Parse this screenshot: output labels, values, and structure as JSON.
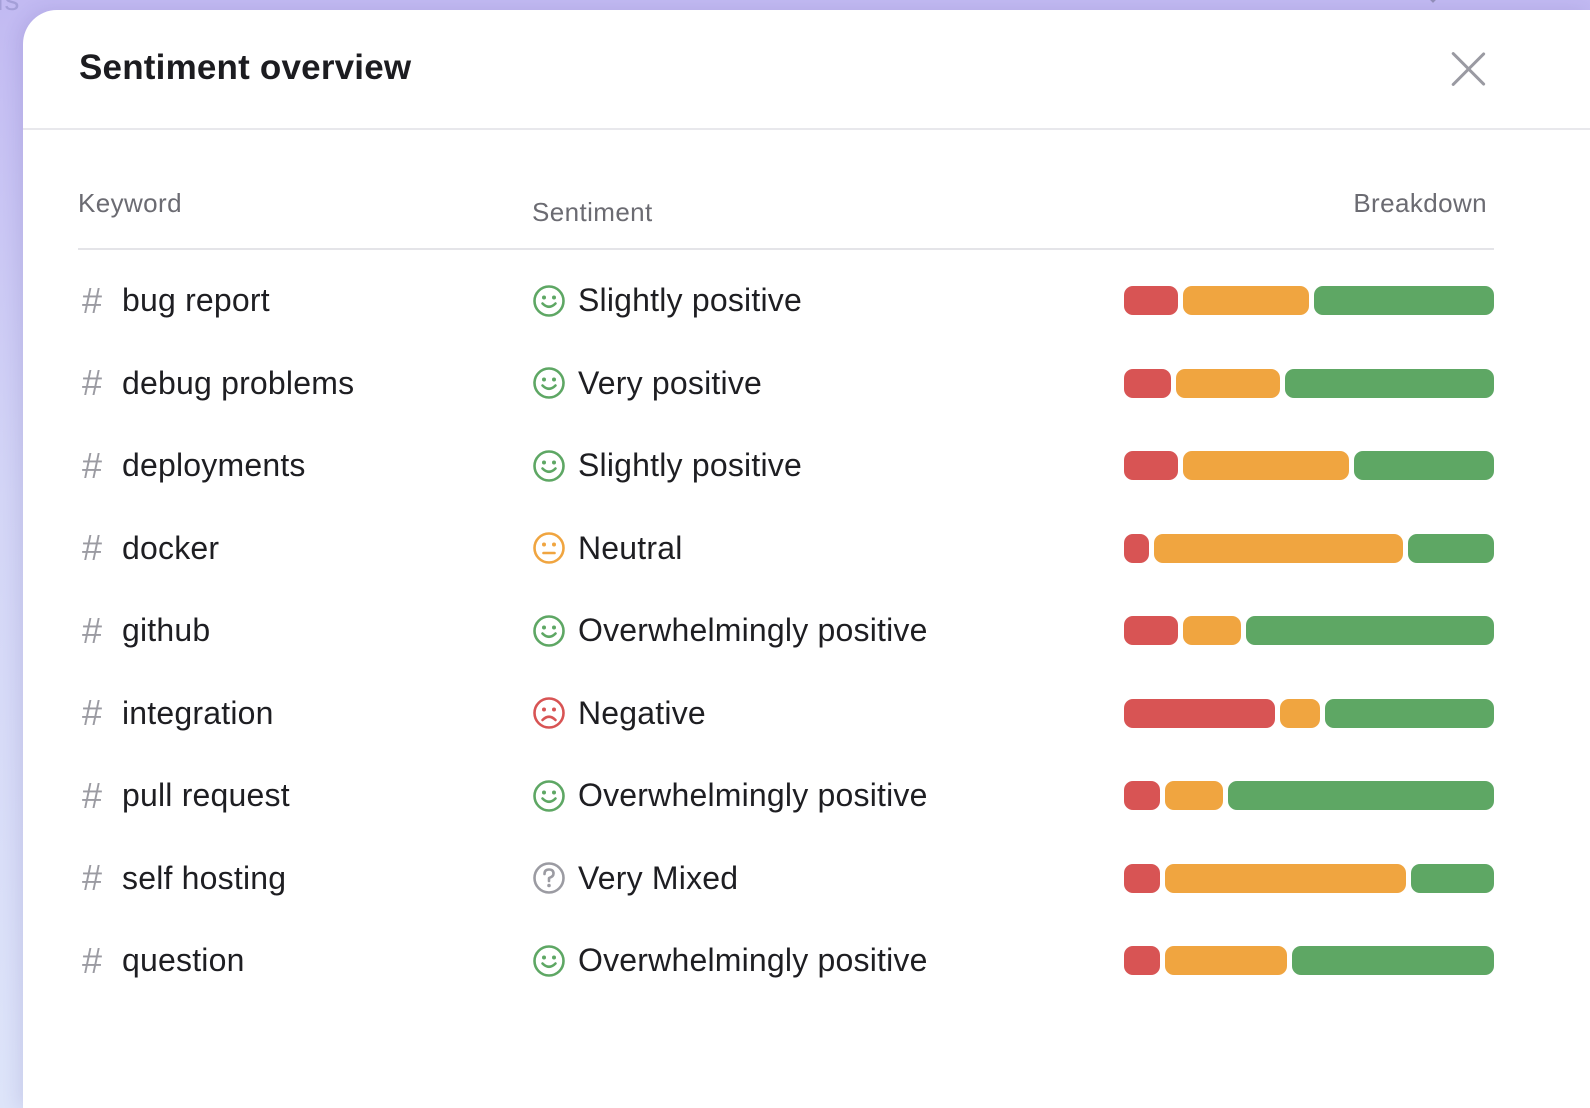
{
  "modal": {
    "title": "Sentiment overview"
  },
  "table": {
    "headers": {
      "keyword": "Keyword",
      "sentiment": "Sentiment",
      "breakdown": "Breakdown"
    },
    "rows": [
      {
        "keyword": "bug report",
        "sentiment": "Slightly positive",
        "face": "smiley-icon",
        "breakdown": {
          "negative": 0.15,
          "neutral": 0.35,
          "positive": 0.5
        }
      },
      {
        "keyword": "debug problems",
        "sentiment": "Very positive",
        "face": "smiley-icon",
        "breakdown": {
          "negative": 0.13,
          "neutral": 0.29,
          "positive": 0.58
        }
      },
      {
        "keyword": "deployments",
        "sentiment": "Slightly positive",
        "face": "smiley-icon",
        "breakdown": {
          "negative": 0.15,
          "neutral": 0.46,
          "positive": 0.39
        }
      },
      {
        "keyword": "docker",
        "sentiment": "Neutral",
        "face": "neutral-face-icon",
        "breakdown": {
          "negative": 0.07,
          "neutral": 0.69,
          "positive": 0.24
        }
      },
      {
        "keyword": "github",
        "sentiment": "Overwhelmingly positive",
        "face": "smiley-icon",
        "breakdown": {
          "negative": 0.15,
          "neutral": 0.16,
          "positive": 0.69
        }
      },
      {
        "keyword": "integration",
        "sentiment": "Negative",
        "face": "sad-face-icon",
        "breakdown": {
          "negative": 0.42,
          "neutral": 0.11,
          "positive": 0.47
        }
      },
      {
        "keyword": "pull request",
        "sentiment": "Overwhelmingly positive",
        "face": "smiley-icon",
        "breakdown": {
          "negative": 0.1,
          "neutral": 0.16,
          "positive": 0.74
        }
      },
      {
        "keyword": "self hosting",
        "sentiment": "Very Mixed",
        "face": "question-circle-icon",
        "breakdown": {
          "negative": 0.1,
          "neutral": 0.67,
          "positive": 0.23
        }
      },
      {
        "keyword": "question",
        "sentiment": "Overwhelmingly positive",
        "face": "smiley-icon",
        "breakdown": {
          "negative": 0.1,
          "neutral": 0.34,
          "positive": 0.56
        }
      }
    ]
  },
  "colors": {
    "negative": "#d85454",
    "neutral": "#f0a540",
    "positive": "#5ea764",
    "mixed": "#9b9ba2"
  }
}
